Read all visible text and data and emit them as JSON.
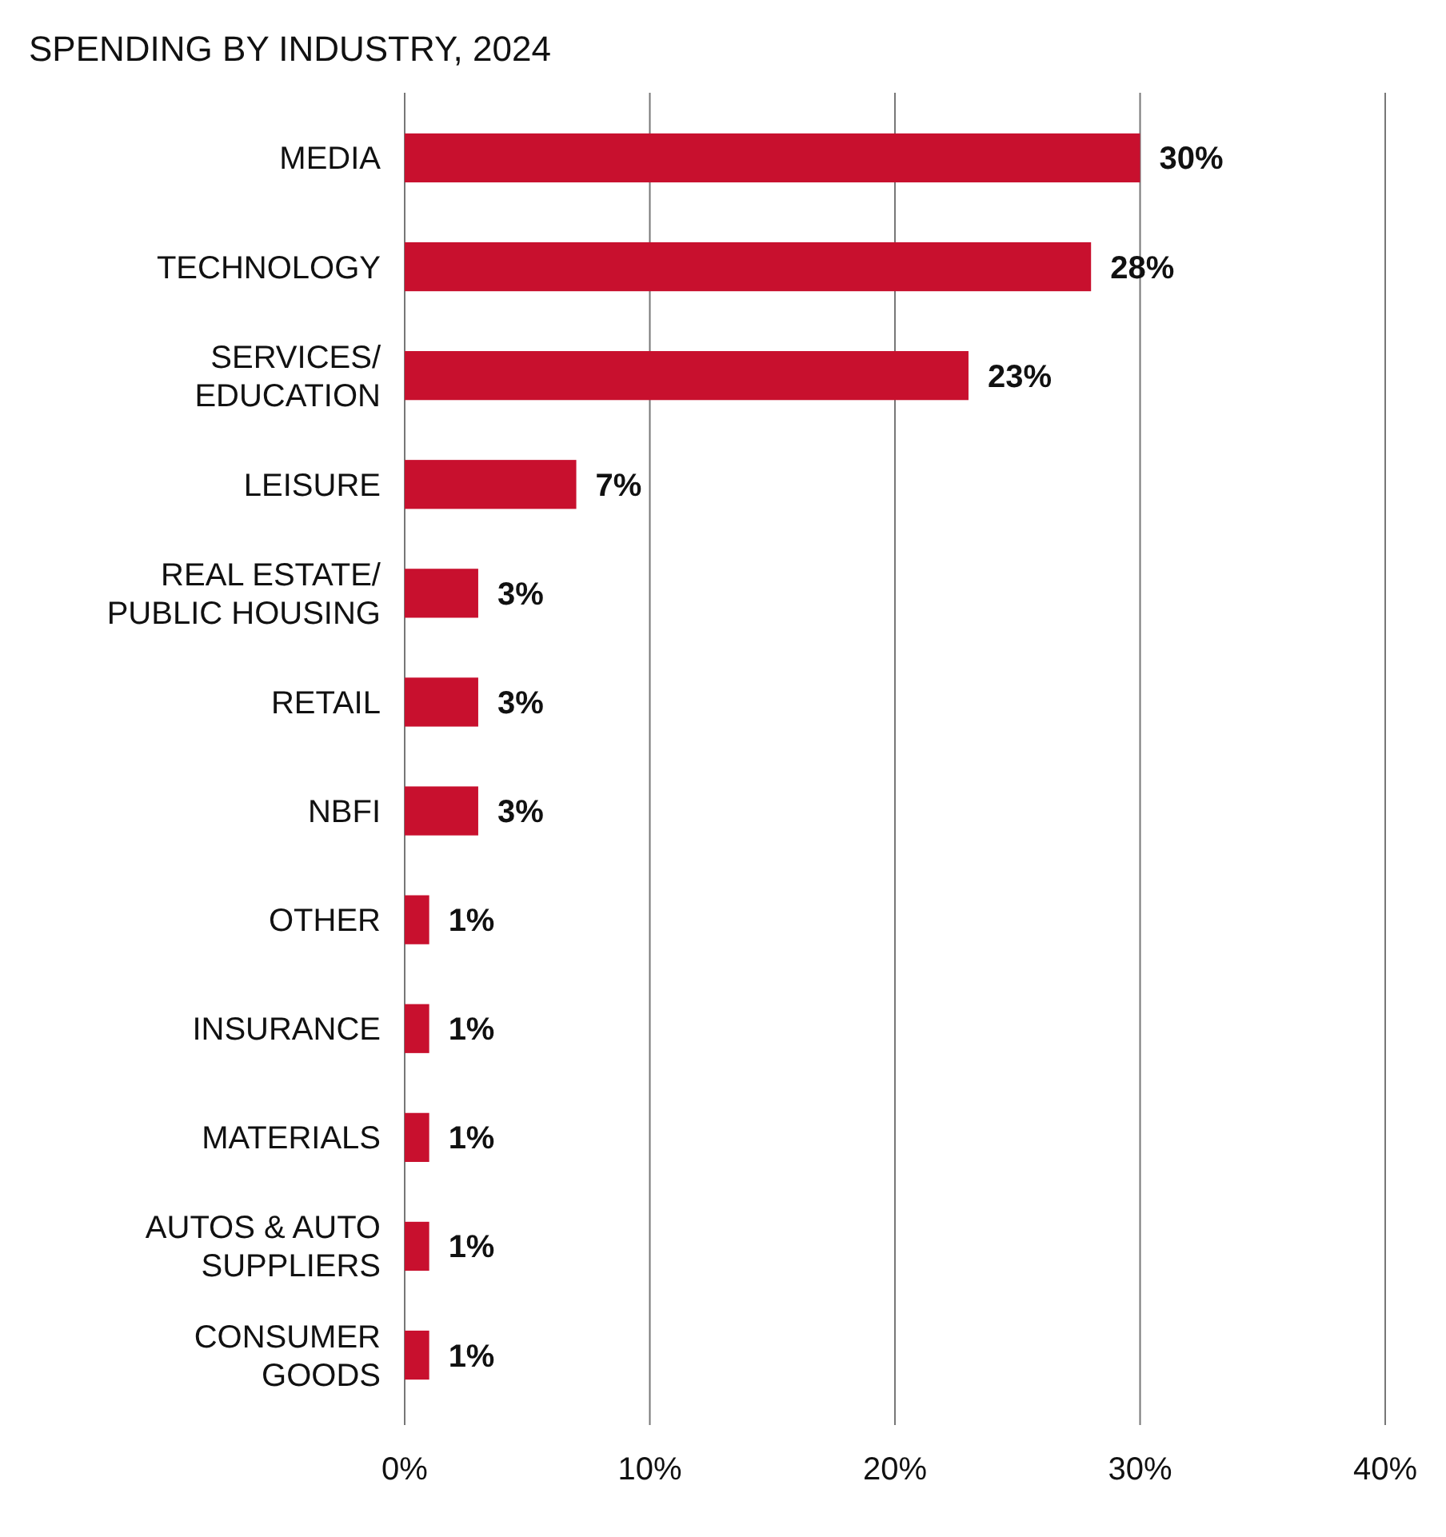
{
  "chart_data": {
    "type": "bar",
    "orientation": "horizontal",
    "title": "SPENDING BY INDUSTRY, 2024",
    "categories": [
      "MEDIA",
      "TECHNOLOGY",
      "SERVICES/\nEDUCATION",
      "LEISURE",
      "REAL ESTATE/\nPUBLIC HOUSING",
      "RETAIL",
      "NBFI",
      "OTHER",
      "INSURANCE",
      "MATERIALS",
      "AUTOS & AUTO\nSUPPLIERS",
      "CONSUMER\nGOODS"
    ],
    "values": [
      30,
      28,
      23,
      7,
      3,
      3,
      3,
      1,
      1,
      1,
      1,
      1
    ],
    "value_labels": [
      "30%",
      "28%",
      "23%",
      "7%",
      "3%",
      "3%",
      "3%",
      "1%",
      "1%",
      "1%",
      "1%",
      "1%"
    ],
    "color": "#c8102e",
    "xlim": [
      0,
      40
    ],
    "xticks": [
      {
        "value": 0,
        "label": "0%"
      },
      {
        "value": 10,
        "label": "10%"
      },
      {
        "value": 20,
        "label": "20%"
      },
      {
        "value": 30,
        "label": "30%"
      },
      {
        "value": 40,
        "label": "40%"
      }
    ],
    "grid": "x"
  }
}
